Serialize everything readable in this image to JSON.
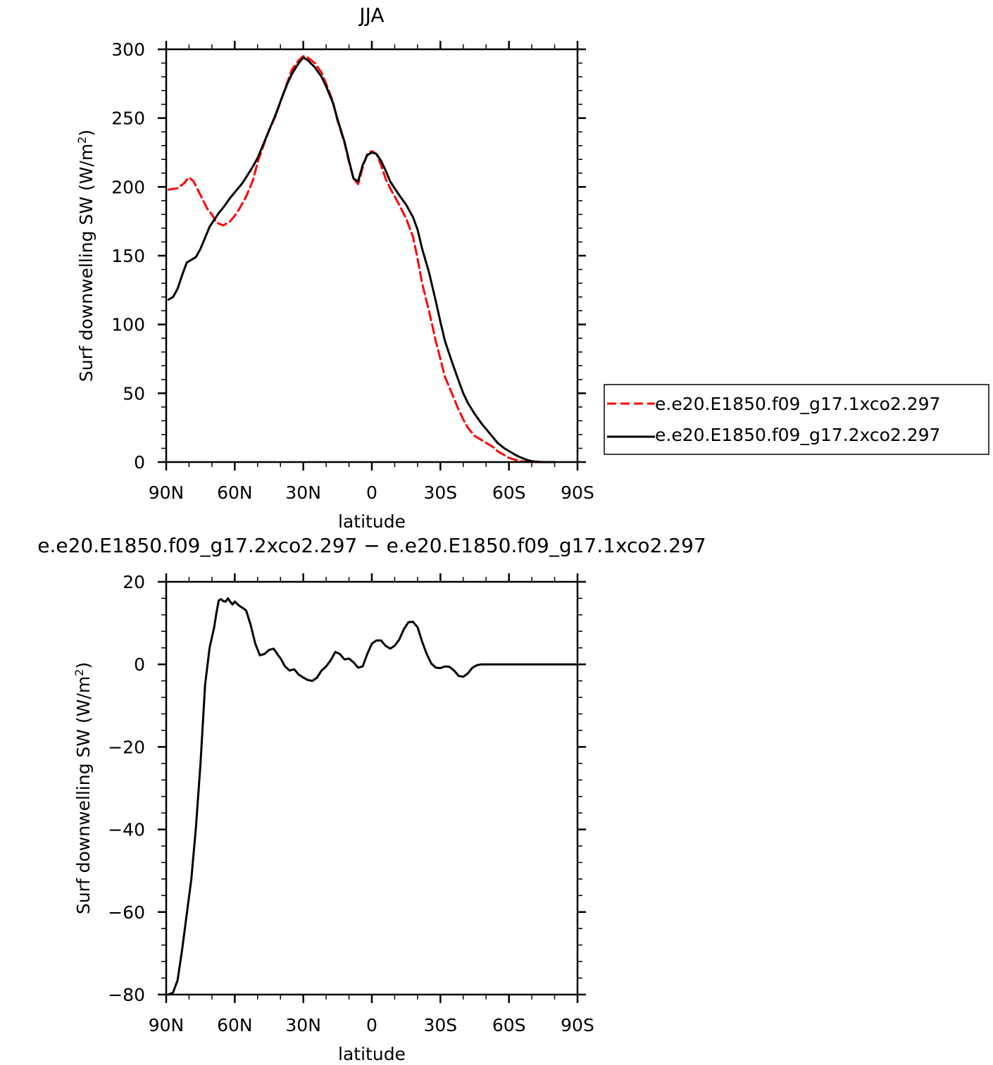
{
  "chart_data": [
    {
      "type": "line",
      "title": "JJA",
      "xlabel": "latitude",
      "ylabel": "Surf downwelling SW (W/m²)",
      "ylabel_main": "Surf downwelling SW (W/m",
      "ylabel_sup": "2",
      "ylabel_close": ")",
      "xlim": [
        90,
        -90
      ],
      "ylim": [
        0,
        300
      ],
      "x_ticks": [
        90,
        60,
        30,
        0,
        -30,
        -60,
        -90
      ],
      "x_tick_labels": [
        "90N",
        "60N",
        "30N",
        "0",
        "30S",
        "60S",
        "90S"
      ],
      "y_ticks": [
        0,
        50,
        100,
        150,
        200,
        250,
        300
      ],
      "y_tick_labels": [
        "0",
        "50",
        "100",
        "150",
        "200",
        "250",
        "300"
      ],
      "grid": false,
      "legend_position": "right",
      "series": [
        {
          "name": "e.e20.E1850.f09_g17.1xco2.297",
          "color": "#ff0000",
          "dash": "dashed",
          "x": [
            89,
            85,
            82,
            80,
            78,
            75,
            72,
            70,
            68,
            65,
            62,
            60,
            58,
            55,
            52,
            50,
            47,
            45,
            42,
            40,
            37,
            35,
            32,
            30,
            28,
            25,
            22,
            20,
            17,
            15,
            12,
            10,
            8,
            6,
            4,
            2,
            0,
            -2,
            -4,
            -6,
            -8,
            -10,
            -12,
            -15,
            -18,
            -20,
            -22,
            -25,
            -28,
            -30,
            -32,
            -35,
            -38,
            -40,
            -42,
            -45,
            -48,
            -50,
            -53,
            -55,
            -58,
            -60,
            -63,
            -65,
            -68,
            -70,
            -73,
            -75,
            -78,
            -80
          ],
          "y": [
            198,
            199,
            203,
            207,
            204,
            194,
            184,
            180,
            174,
            172,
            175,
            179,
            184,
            193,
            205,
            218,
            232,
            241,
            252,
            262,
            276,
            285,
            292,
            295,
            294,
            290,
            283,
            275,
            262,
            248,
            232,
            218,
            206,
            202,
            214,
            224,
            226,
            224,
            216,
            206,
            199,
            193,
            187,
            177,
            164,
            148,
            130,
            110,
            88,
            75,
            62,
            50,
            38,
            31,
            25,
            19,
            16,
            14,
            11,
            8,
            5,
            3,
            1.5,
            0.6,
            0.2,
            0,
            0,
            0,
            0,
            0
          ]
        },
        {
          "name": "e.e20.E1850.f09_g17.2xco2.297",
          "color": "#000000",
          "dash": "solid",
          "x": [
            89,
            87,
            85,
            83,
            81,
            79,
            77,
            75,
            73,
            71,
            69,
            67,
            65,
            62,
            60,
            57,
            55,
            52,
            50,
            47,
            45,
            42,
            40,
            37,
            35,
            32,
            30,
            28,
            25,
            22,
            20,
            17,
            15,
            12,
            10,
            8,
            6,
            4,
            2,
            0,
            -2,
            -4,
            -6,
            -8,
            -10,
            -12,
            -15,
            -18,
            -20,
            -22,
            -25,
            -28,
            -30,
            -32,
            -35,
            -38,
            -40,
            -42,
            -45,
            -48,
            -50,
            -53,
            -55,
            -58,
            -60,
            -63,
            -65,
            -68,
            -70,
            -73,
            -75,
            -78,
            -80
          ],
          "y": [
            118,
            120,
            126,
            136,
            145,
            147,
            149,
            155,
            163,
            171,
            176,
            181,
            185,
            192,
            196,
            202,
            207,
            215,
            221,
            233,
            241,
            253,
            262,
            275,
            282,
            290,
            294,
            292,
            287,
            280,
            273,
            261,
            249,
            233,
            219,
            206,
            204,
            216,
            223,
            225,
            224,
            219,
            212,
            204,
            199,
            194,
            187,
            178,
            169,
            155,
            138,
            117,
            102,
            88,
            73,
            59,
            50,
            43,
            35,
            28,
            24,
            18,
            14,
            10,
            8,
            5,
            3.5,
            1.5,
            0.6,
            0.1,
            0,
            0,
            0
          ]
        }
      ]
    },
    {
      "type": "line",
      "title": "e.e20.E1850.f09_g17.2xco2.297 − e.e20.E1850.f09_g17.1xco2.297",
      "xlabel": "latitude",
      "ylabel": "Surf downwelling SW (W/m²)",
      "ylabel_main": "Surf downwelling SW (W/m",
      "ylabel_sup": "2",
      "ylabel_close": ")",
      "xlim": [
        90,
        -90
      ],
      "ylim": [
        -80,
        20
      ],
      "x_ticks": [
        90,
        60,
        30,
        0,
        -30,
        -60,
        -90
      ],
      "x_tick_labels": [
        "90N",
        "60N",
        "30N",
        "0",
        "30S",
        "60S",
        "90S"
      ],
      "y_ticks": [
        20,
        0,
        -20,
        -40,
        -60,
        -80
      ],
      "y_tick_labels": [
        "20",
        "0",
        "−20",
        "−40",
        "−60",
        "−80"
      ],
      "grid": false,
      "series": [
        {
          "color": "#000000",
          "dash": "solid",
          "x": [
            89,
            87,
            85,
            83,
            81,
            79,
            77,
            75,
            73,
            71,
            69,
            68,
            67,
            66,
            65,
            64,
            63,
            62,
            61,
            60,
            59,
            58,
            57,
            56,
            55,
            53,
            51,
            49,
            47,
            45,
            43,
            41,
            40,
            38,
            36,
            34,
            32,
            30,
            28,
            26,
            24,
            22,
            20,
            18,
            16,
            14,
            12,
            10,
            8,
            6,
            4,
            2,
            0,
            -2,
            -4,
            -6,
            -8,
            -10,
            -12,
            -14,
            -16,
            -18,
            -20,
            -22,
            -24,
            -26,
            -28,
            -30,
            -32,
            -34,
            -36,
            -38,
            -40,
            -42,
            -44,
            -46,
            -48,
            -50,
            -52,
            -54,
            -56,
            -58,
            -60,
            -62,
            -64,
            -66,
            -68,
            -70,
            -75,
            -80,
            -85,
            -90
          ],
          "y": [
            -80,
            -79.5,
            -76.5,
            -69,
            -60.5,
            -52,
            -39.5,
            -24,
            -5,
            4,
            9,
            12.5,
            15.5,
            15.8,
            15.3,
            15.2,
            16,
            15.2,
            14.5,
            15.2,
            14.7,
            14.2,
            13.8,
            13.5,
            13,
            9.5,
            5,
            2.2,
            2.5,
            3.5,
            3.8,
            2.2,
            1.5,
            -0.5,
            -1.5,
            -1.2,
            -2.5,
            -3.2,
            -3.8,
            -4,
            -3.2,
            -1.5,
            -0.5,
            1,
            3,
            2.5,
            1.2,
            1.4,
            0.5,
            -0.8,
            -0.5,
            2.5,
            5,
            5.8,
            5.8,
            4.5,
            3.8,
            4.5,
            6,
            8.5,
            10.2,
            10.3,
            9,
            5.5,
            2.5,
            0.2,
            -0.8,
            -0.9,
            -0.5,
            -0.6,
            -1.5,
            -2.8,
            -3,
            -2.2,
            -0.8,
            -0.2,
            0,
            0,
            0,
            0,
            0,
            0,
            0,
            0,
            0,
            0,
            0,
            0,
            0,
            0,
            0,
            0
          ]
        }
      ]
    }
  ]
}
